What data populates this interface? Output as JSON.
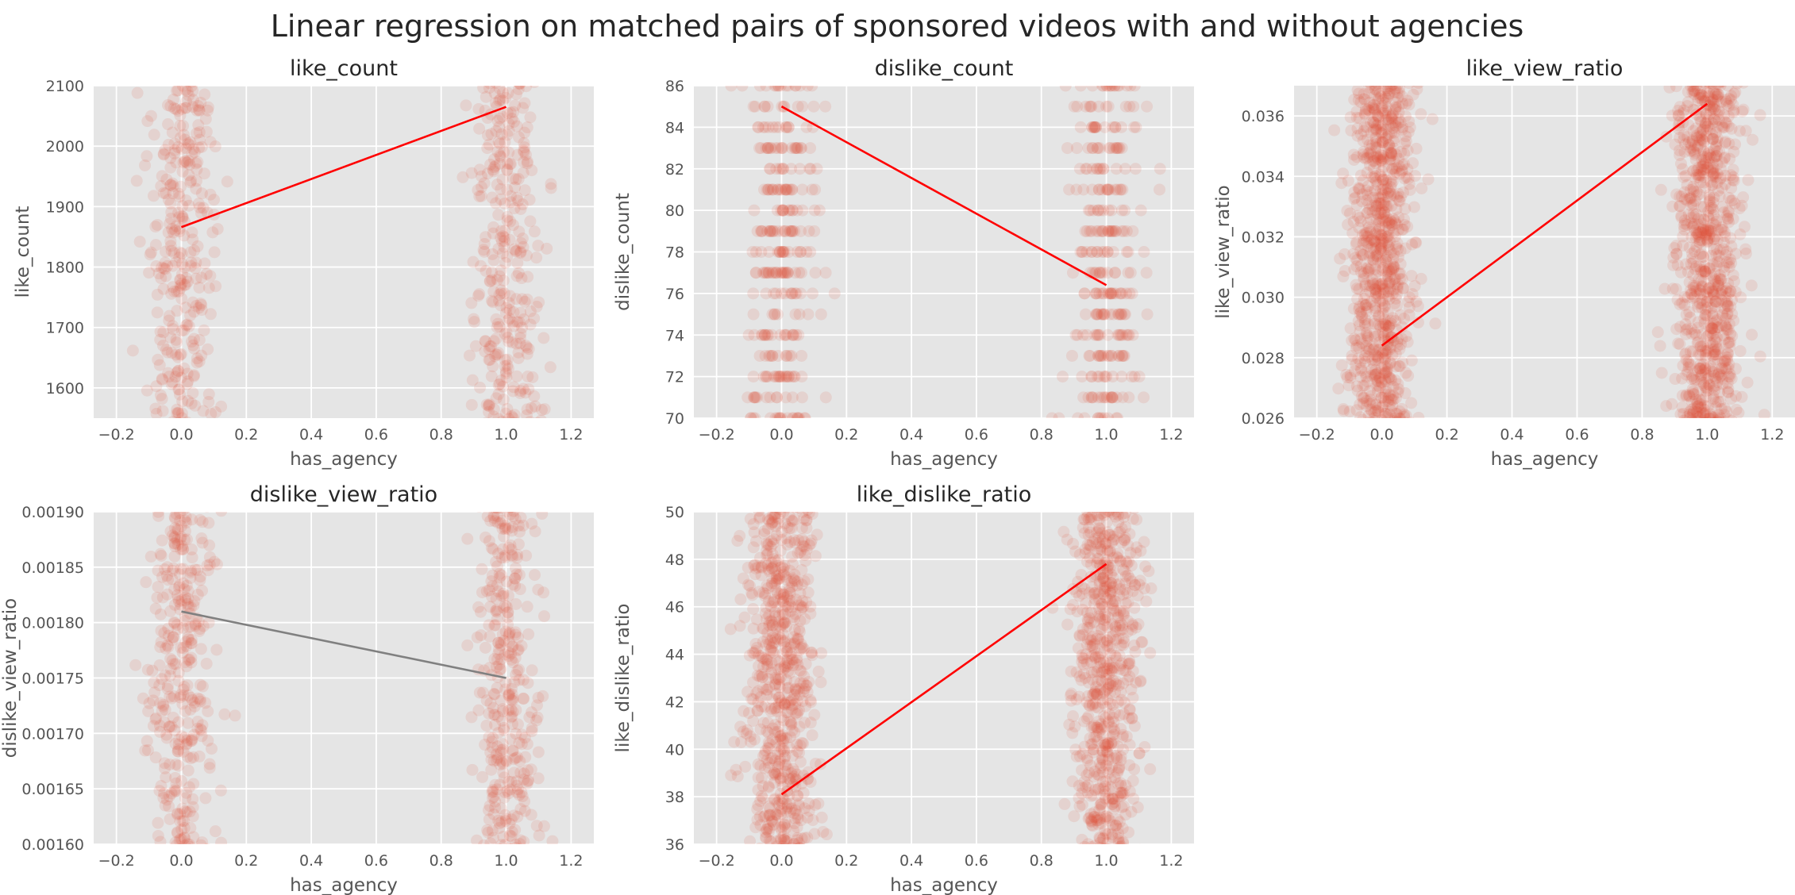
{
  "figure_title": "Linear regression on matched pairs of sponsored videos with and without agencies",
  "chart_data": [
    {
      "type": "scatter",
      "title": "like_count",
      "xlabel": "has_agency",
      "ylabel": "like_count",
      "xlim": [
        -0.27,
        1.27
      ],
      "ylim": [
        1550,
        2100
      ],
      "xticks": [
        -0.2,
        0.0,
        0.2,
        0.4,
        0.6,
        0.8,
        1.0,
        1.2
      ],
      "yticks": [
        1600,
        1700,
        1800,
        1900,
        2000,
        2100
      ],
      "x_tick_labels": [
        "−0.2",
        "0.0",
        "0.2",
        "0.4",
        "0.6",
        "0.8",
        "1.0",
        "1.2"
      ],
      "y_tick_labels": [
        "1600",
        "1700",
        "1800",
        "1900",
        "2000",
        "2100"
      ],
      "grid": true,
      "points": {
        "groups": [
          0,
          1
        ],
        "jitter_sd": 0.05,
        "count_per_group": 320,
        "discrete_step": 0,
        "color": "#E24A33",
        "alpha": 0.12
      },
      "regression": {
        "x": [
          0,
          1
        ],
        "y": [
          1866,
          2065
        ],
        "color": "#FF0000"
      }
    },
    {
      "type": "scatter",
      "title": "dislike_count",
      "xlabel": "has_agency",
      "ylabel": "dislike_count",
      "xlim": [
        -0.27,
        1.27
      ],
      "ylim": [
        70,
        86
      ],
      "xticks": [
        -0.2,
        0.0,
        0.2,
        0.4,
        0.6,
        0.8,
        1.0,
        1.2
      ],
      "yticks": [
        70,
        72,
        74,
        76,
        78,
        80,
        82,
        84,
        86
      ],
      "x_tick_labels": [
        "−0.2",
        "0.0",
        "0.2",
        "0.4",
        "0.6",
        "0.8",
        "1.0",
        "1.2"
      ],
      "y_tick_labels": [
        "70",
        "72",
        "74",
        "76",
        "78",
        "80",
        "82",
        "84",
        "86"
      ],
      "grid": true,
      "points": {
        "groups": [
          0,
          1
        ],
        "jitter_sd": 0.05,
        "count_per_group": 300,
        "discrete_step": 1,
        "color": "#E24A33",
        "alpha": 0.12
      },
      "regression": {
        "x": [
          0,
          1
        ],
        "y": [
          85,
          76.4
        ],
        "color": "#FF0000"
      }
    },
    {
      "type": "scatter",
      "title": "like_view_ratio",
      "xlabel": "has_agency",
      "ylabel": "like_view_ratio",
      "xlim": [
        -0.27,
        1.27
      ],
      "ylim": [
        0.026,
        0.037
      ],
      "xticks": [
        -0.2,
        0.0,
        0.2,
        0.4,
        0.6,
        0.8,
        1.0,
        1.2
      ],
      "yticks": [
        0.026,
        0.028,
        0.03,
        0.032,
        0.034,
        0.036
      ],
      "x_tick_labels": [
        "−0.2",
        "0.0",
        "0.2",
        "0.4",
        "0.6",
        "0.8",
        "1.0",
        "1.2"
      ],
      "y_tick_labels": [
        "0.026",
        "0.028",
        "0.030",
        "0.032",
        "0.034",
        "0.036"
      ],
      "grid": true,
      "points": {
        "groups": [
          0,
          1
        ],
        "jitter_sd": 0.05,
        "count_per_group": 900,
        "discrete_step": 0,
        "color": "#E24A33",
        "alpha": 0.12
      },
      "regression": {
        "x": [
          0,
          1
        ],
        "y": [
          0.0284,
          0.0364
        ],
        "color": "#FF0000"
      }
    },
    {
      "type": "scatter",
      "title": "dislike_view_ratio",
      "xlabel": "has_agency",
      "ylabel": "dislike_view_ratio",
      "xlim": [
        -0.27,
        1.27
      ],
      "ylim": [
        0.0016,
        0.0019
      ],
      "xticks": [
        -0.2,
        0.0,
        0.2,
        0.4,
        0.6,
        0.8,
        1.0,
        1.2
      ],
      "yticks": [
        0.0016,
        0.00165,
        0.0017,
        0.00175,
        0.0018,
        0.00185,
        0.0019
      ],
      "x_tick_labels": [
        "−0.2",
        "0.0",
        "0.2",
        "0.4",
        "0.6",
        "0.8",
        "1.0",
        "1.2"
      ],
      "y_tick_labels": [
        "0.00160",
        "0.00165",
        "0.00170",
        "0.00175",
        "0.00180",
        "0.00185",
        "0.00190"
      ],
      "grid": true,
      "points": {
        "groups": [
          0,
          1
        ],
        "jitter_sd": 0.05,
        "count_per_group": 340,
        "discrete_step": 0,
        "color": "#E24A33",
        "alpha": 0.12
      },
      "regression": {
        "x": [
          0,
          1
        ],
        "y": [
          0.00181,
          0.00175
        ],
        "color": "#808080"
      }
    },
    {
      "type": "scatter",
      "title": "like_dislike_ratio",
      "xlabel": "has_agency",
      "ylabel": "like_dislike_ratio",
      "xlim": [
        -0.27,
        1.27
      ],
      "ylim": [
        36,
        50
      ],
      "xticks": [
        -0.2,
        0.0,
        0.2,
        0.4,
        0.6,
        0.8,
        1.0,
        1.2
      ],
      "yticks": [
        36,
        38,
        40,
        42,
        44,
        46,
        48,
        50
      ],
      "x_tick_labels": [
        "−0.2",
        "0.0",
        "0.2",
        "0.4",
        "0.6",
        "0.8",
        "1.0",
        "1.2"
      ],
      "y_tick_labels": [
        "36",
        "38",
        "40",
        "42",
        "44",
        "46",
        "48",
        "50"
      ],
      "grid": true,
      "points": {
        "groups": [
          0,
          1
        ],
        "jitter_sd": 0.05,
        "count_per_group": 700,
        "discrete_step": 0,
        "color": "#E24A33",
        "alpha": 0.12
      },
      "regression": {
        "x": [
          0,
          1
        ],
        "y": [
          38.1,
          47.8
        ],
        "color": "#FF0000"
      }
    }
  ]
}
